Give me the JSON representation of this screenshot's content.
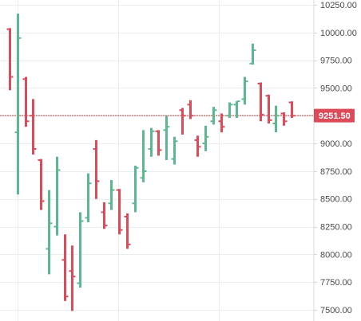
{
  "colors": {
    "up": "#5cb88f",
    "down": "#dd4b5a",
    "grid": "#e9eef2",
    "axis_line": "#d5d9dd",
    "current_price_line": "#c83c3c",
    "current_price_bg": "#dd4b5a"
  },
  "chart_data": {
    "type": "ohlc",
    "title": "",
    "xlabel": "",
    "ylabel": "",
    "ylim": [
      7450,
      10280
    ],
    "y_ticks": [
      7500,
      7750,
      8000,
      8250,
      8500,
      8750,
      9000,
      9250,
      9500,
      9750,
      10000,
      10250
    ],
    "y_tick_labels": [
      "7500.00",
      "7750.00",
      "8000.00",
      "8250.00",
      "8500.00",
      "8750.00",
      "9000.00",
      "9250.00",
      "9500.00",
      "9750.00",
      "10000.00",
      "10250.00"
    ],
    "current_price": 9251.5,
    "current_price_label": "9251.50",
    "grid": true,
    "candles": [
      {
        "open": 10030,
        "high": 10040,
        "low": 9480,
        "close": 9600
      },
      {
        "open": 9100,
        "high": 10170,
        "low": 8540,
        "close": 9950
      },
      {
        "open": 9580,
        "high": 9600,
        "low": 9150,
        "close": 9200
      },
      {
        "open": 9250,
        "high": 9400,
        "low": 8900,
        "close": 8950
      },
      {
        "open": 8850,
        "high": 8860,
        "low": 8400,
        "close": 8480
      },
      {
        "open": 8050,
        "high": 8580,
        "low": 7820,
        "close": 8280
      },
      {
        "open": 8250,
        "high": 8880,
        "low": 8170,
        "close": 8760
      },
      {
        "open": 7950,
        "high": 8180,
        "low": 7580,
        "close": 7620
      },
      {
        "open": 7850,
        "high": 8080,
        "low": 7490,
        "close": 7800
      },
      {
        "open": 7740,
        "high": 8380,
        "low": 7700,
        "close": 8300
      },
      {
        "open": 8330,
        "high": 8730,
        "low": 8290,
        "close": 8640
      },
      {
        "open": 8950,
        "high": 9030,
        "low": 8500,
        "close": 8660
      },
      {
        "open": 8380,
        "high": 8470,
        "low": 8230,
        "close": 8260
      },
      {
        "open": 8460,
        "high": 8670,
        "low": 8400,
        "close": 8580
      },
      {
        "open": 8580,
        "high": 8590,
        "low": 8180,
        "close": 8220
      },
      {
        "open": 8340,
        "high": 8370,
        "low": 8050,
        "close": 8090
      },
      {
        "open": 8460,
        "high": 8800,
        "low": 8380,
        "close": 8780
      },
      {
        "open": 8690,
        "high": 9120,
        "low": 8650,
        "close": 8750
      },
      {
        "open": 8950,
        "high": 9140,
        "low": 8880,
        "close": 9110
      },
      {
        "open": 9110,
        "high": 9120,
        "low": 8890,
        "close": 8940
      },
      {
        "open": 9120,
        "high": 9250,
        "low": 8850,
        "close": 9150
      },
      {
        "open": 8860,
        "high": 9060,
        "low": 8810,
        "close": 9020
      },
      {
        "open": 9300,
        "high": 9320,
        "low": 9080,
        "close": 9250
      },
      {
        "open": 9350,
        "high": 9390,
        "low": 9220,
        "close": 9250
      },
      {
        "open": 9030,
        "high": 9070,
        "low": 8880,
        "close": 8970
      },
      {
        "open": 9000,
        "high": 9160,
        "low": 8930,
        "close": 9060
      },
      {
        "open": 9200,
        "high": 9330,
        "low": 9170,
        "close": 9300
      },
      {
        "open": 9200,
        "high": 9270,
        "low": 9100,
        "close": 9150
      },
      {
        "open": 9250,
        "high": 9370,
        "low": 9230,
        "close": 9350
      },
      {
        "open": 9350,
        "high": 9380,
        "low": 9230,
        "close": 9380
      },
      {
        "open": 9400,
        "high": 9600,
        "low": 9350,
        "close": 9560
      },
      {
        "open": 9720,
        "high": 9900,
        "low": 9710,
        "close": 9840
      },
      {
        "open": 9540,
        "high": 9550,
        "low": 9200,
        "close": 9260
      },
      {
        "open": 9430,
        "high": 9440,
        "low": 9180,
        "close": 9210
      },
      {
        "open": 9180,
        "high": 9340,
        "low": 9100,
        "close": 9250
      },
      {
        "open": 9270,
        "high": 9280,
        "low": 9160,
        "close": 9200
      },
      {
        "open": 9370,
        "high": 9380,
        "low": 9230,
        "close": 9250
      }
    ]
  }
}
